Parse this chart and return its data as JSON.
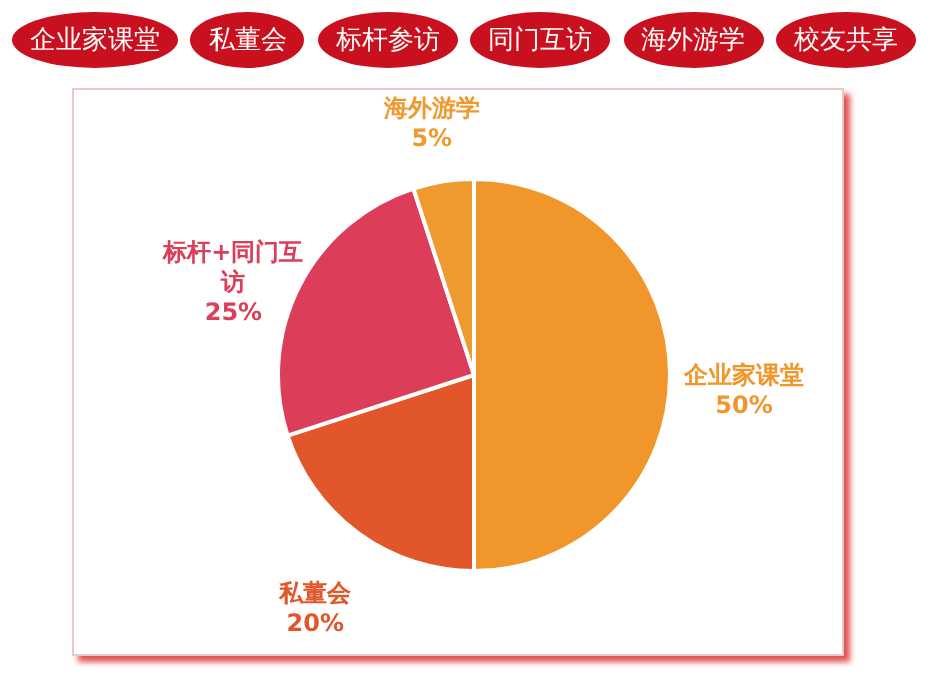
{
  "chart_data": {
    "type": "pie",
    "annotations": [
      "企业家课堂",
      "私董会",
      "标杆参访",
      "同门互访",
      "海外游学",
      "校友共享"
    ],
    "categories": [
      "企业家课堂",
      "私董会",
      "标杆+同门互访",
      "海外游学"
    ],
    "values": [
      50,
      20,
      25,
      5
    ],
    "value_labels": [
      "50%",
      "20%",
      "25%",
      "5%"
    ],
    "colors": [
      "#f0962a",
      "#e2562c",
      "#dc3e5a",
      "#ef9a2e"
    ],
    "legend": false
  }
}
